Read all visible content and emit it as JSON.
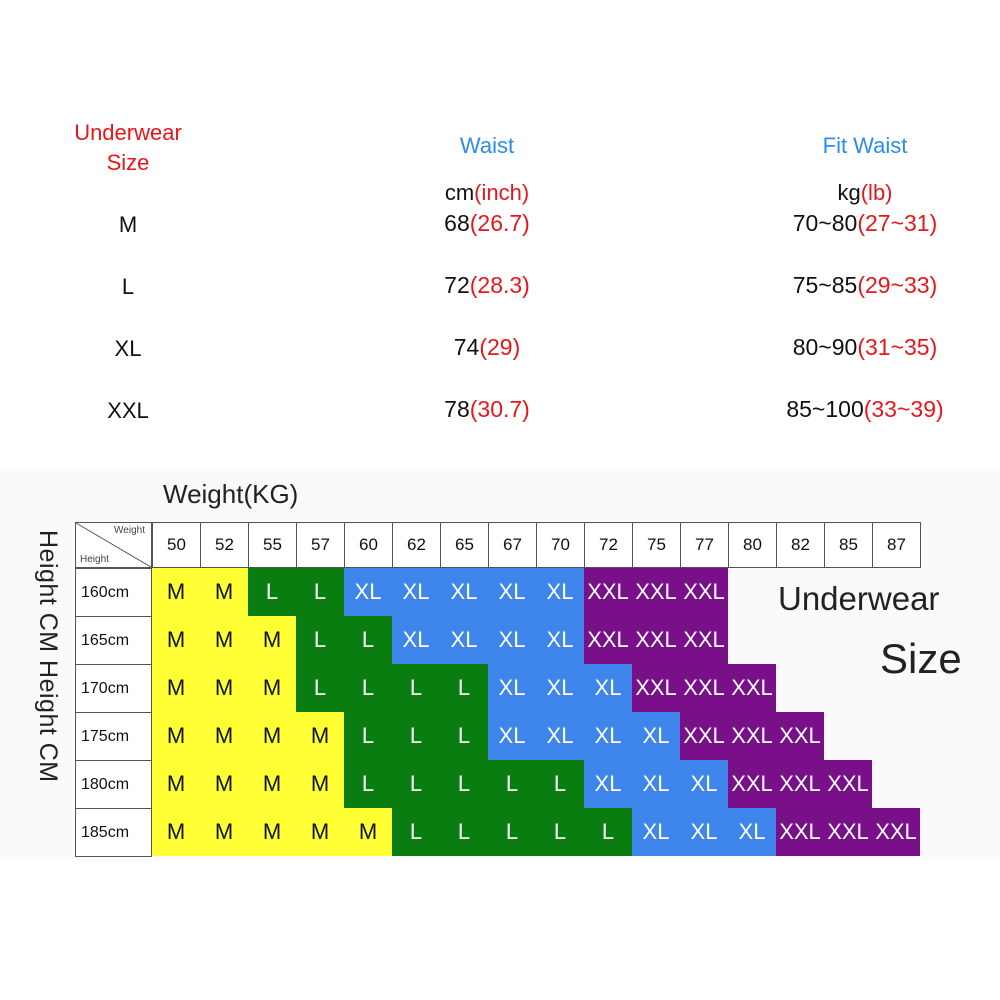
{
  "top_table": {
    "col1_header": "Underwear\nSize",
    "col2_header": "Waist",
    "col3_header": "Fit Waist",
    "col2_unit": {
      "main": "cm",
      "alt": "(inch)"
    },
    "col3_unit": {
      "main": "kg",
      "alt": "(lb)"
    },
    "rows": [
      {
        "size": "M",
        "waist": "68",
        "waist_alt": "(26.7)",
        "fit": "70~80",
        "fit_alt": "(27~31)"
      },
      {
        "size": "L",
        "waist": "72",
        "waist_alt": "(28.3)",
        "fit": "75~85",
        "fit_alt": "(29~33)"
      },
      {
        "size": "XL",
        "waist": "74",
        "waist_alt": "(29)",
        "fit": "80~90",
        "fit_alt": "(31~35)"
      },
      {
        "size": "XXL",
        "waist": "78",
        "waist_alt": "(30.7)",
        "fit": "85~100",
        "fit_alt": "(33~39)"
      }
    ]
  },
  "size_chart": {
    "weight_title": "Weight(KG)",
    "height_title": "Height CM  Height CM",
    "corner_weight": "Weight",
    "corner_height": "Height",
    "label_line1": "Underwear",
    "label_line2": "Size",
    "weights": [
      "50",
      "52",
      "55",
      "57",
      "60",
      "62",
      "65",
      "67",
      "70",
      "72",
      "75",
      "77",
      "80",
      "82",
      "85",
      "87"
    ],
    "heights": [
      "160cm",
      "165cm",
      "170cm",
      "175cm",
      "180cm",
      "185cm"
    ],
    "grid": [
      [
        "M",
        "M",
        "L",
        "L",
        "XL",
        "XL",
        "XL",
        "XL",
        "XL",
        "XXL",
        "XXL",
        "XXL",
        "",
        "",
        "",
        ""
      ],
      [
        "M",
        "M",
        "M",
        "L",
        "L",
        "XL",
        "XL",
        "XL",
        "XL",
        "XXL",
        "XXL",
        "XXL",
        "",
        "",
        "",
        ""
      ],
      [
        "M",
        "M",
        "M",
        "L",
        "L",
        "L",
        "L",
        "XL",
        "XL",
        "XL",
        "XXL",
        "XXL",
        "XXL",
        "",
        "",
        ""
      ],
      [
        "M",
        "M",
        "M",
        "M",
        "L",
        "L",
        "L",
        "XL",
        "XL",
        "XL",
        "XL",
        "XXL",
        "XXL",
        "XXL",
        "",
        ""
      ],
      [
        "M",
        "M",
        "M",
        "M",
        "L",
        "L",
        "L",
        "L",
        "L",
        "XL",
        "XL",
        "XL",
        "XXL",
        "XXL",
        "XXL",
        ""
      ],
      [
        "M",
        "M",
        "M",
        "M",
        "M",
        "L",
        "L",
        "L",
        "L",
        "L",
        "XL",
        "XL",
        "XL",
        "XXL",
        "XXL",
        "XXL"
      ]
    ],
    "colors": {
      "M": "#ffff33",
      "L": "#0a7d10",
      "XL": "#3f86ec",
      "XXL": "#7a0f8a"
    }
  }
}
